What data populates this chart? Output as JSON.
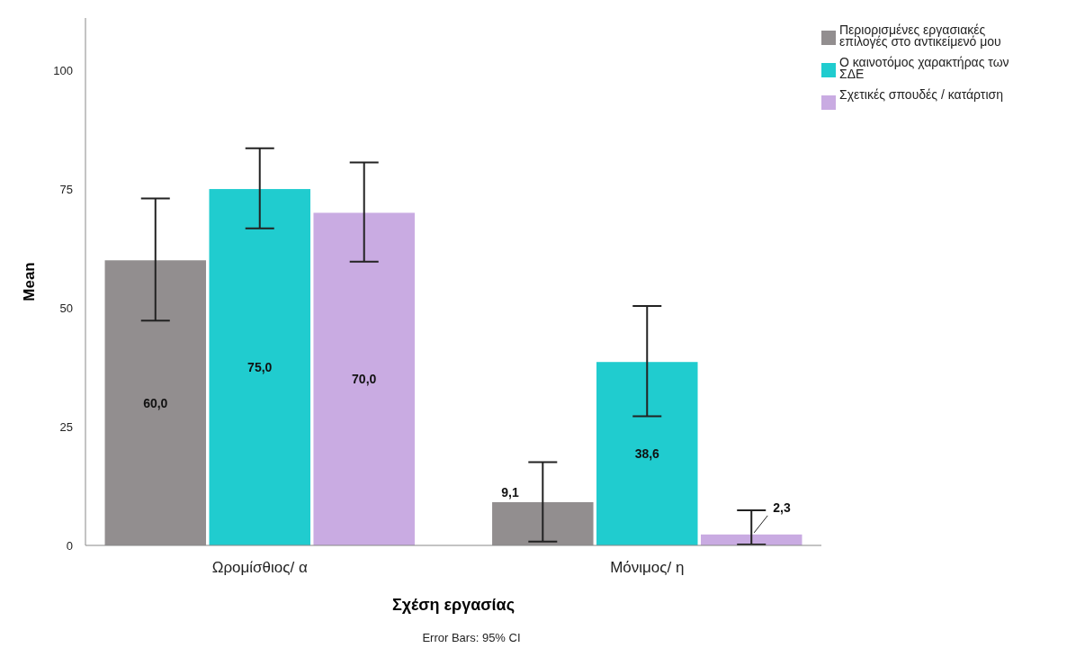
{
  "chart_data": {
    "type": "bar",
    "xlabel": "Σχέση εργασίας",
    "ylabel": "Mean",
    "categories": [
      "Ωρομίσθιος/ α",
      "Μόνιμος/ η"
    ],
    "series": [
      {
        "name": "Περιορισμένες εργασιακές επιλογές στο αντικείμενό μου",
        "color": "#928e8f",
        "values": [
          60.0,
          9.1
        ],
        "errors": [
          [
            47.3,
            73.0
          ],
          [
            0.8,
            17.5
          ]
        ],
        "value_labels": [
          "60,0",
          "9,1"
        ]
      },
      {
        "name": "Ο καινοτόμος  χαρακτήρας των ΣΔΕ",
        "color": "#20cccf",
        "values": [
          75.0,
          38.6
        ],
        "errors": [
          [
            66.7,
            83.6
          ],
          [
            27.2,
            50.4
          ]
        ],
        "value_labels": [
          "75,0",
          "38,6"
        ]
      },
      {
        "name": "Σχετικές σπουδές / κατάρτιση",
        "color": "#c9abe2",
        "values": [
          70.0,
          2.3
        ],
        "errors": [
          [
            59.7,
            80.6
          ],
          [
            0.2,
            7.4
          ]
        ],
        "value_labels": [
          "70,0",
          "2,3"
        ]
      }
    ],
    "ylim": [
      0,
      111
    ],
    "yticks": [
      0,
      25,
      50,
      75,
      100
    ],
    "grid": false,
    "legend": "top right",
    "annotations": [
      "Error Bars: 95% CI"
    ]
  }
}
